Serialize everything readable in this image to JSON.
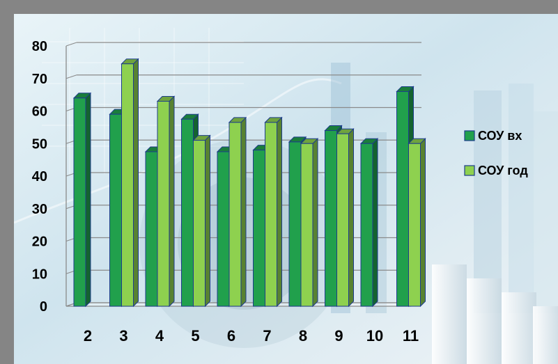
{
  "chart_data": {
    "type": "bar",
    "style": "3d-clustered-column",
    "categories": [
      "2",
      "3",
      "4",
      "5",
      "6",
      "7",
      "8",
      "9",
      "10",
      "11"
    ],
    "series": [
      {
        "name": "СОУ вх",
        "color": "#21a04c",
        "values": [
          64,
          59,
          47.5,
          57.5,
          47.5,
          48,
          50.5,
          54,
          50,
          66
        ]
      },
      {
        "name": "СОУ год",
        "color": "#8ed14f",
        "values": [
          null,
          74.5,
          63,
          51,
          56.5,
          56.5,
          50,
          53,
          null,
          50
        ]
      }
    ],
    "ylim": [
      0,
      80
    ],
    "yticks": [
      "0",
      "10",
      "20",
      "30",
      "40",
      "50",
      "60",
      "70",
      "80"
    ],
    "grid": true,
    "legend": "right"
  }
}
